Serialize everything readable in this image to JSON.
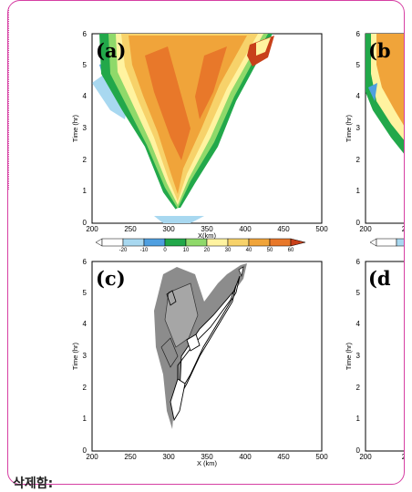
{
  "footer": {
    "label": "삭제함:"
  },
  "colorbar": {
    "ticks": [
      "-20",
      "-10",
      "0",
      "10",
      "20",
      "30",
      "40",
      "50",
      "60"
    ],
    "colors": [
      "#ffffff",
      "#a8d8f0",
      "#4f9fe0",
      "#22a84a",
      "#8fd96a",
      "#fff3a0",
      "#f7d26a",
      "#f0a43a",
      "#e8782a",
      "#c8401a"
    ]
  },
  "panels": [
    {
      "label": "(a)",
      "ylabel": "Time (hr)",
      "xlabel": "X(km)",
      "kind": "filled"
    },
    {
      "label": "(b",
      "ylabel": "Time (hr)",
      "kind": "filled-partial"
    },
    {
      "label": "(c)",
      "ylabel": "Time (hr)",
      "xlabel": "X (km)",
      "kind": "gray"
    },
    {
      "label": "(d",
      "ylabel": "Time (hr)",
      "kind": "gray-partial"
    }
  ],
  "axes": {
    "x_ticks": [
      "200",
      "250",
      "300",
      "350",
      "400",
      "450",
      "500"
    ],
    "y_ticks": [
      "0",
      "1",
      "2",
      "3",
      "4",
      "5",
      "6"
    ],
    "x_ticks_partial": [
      "200",
      "2"
    ]
  }
}
